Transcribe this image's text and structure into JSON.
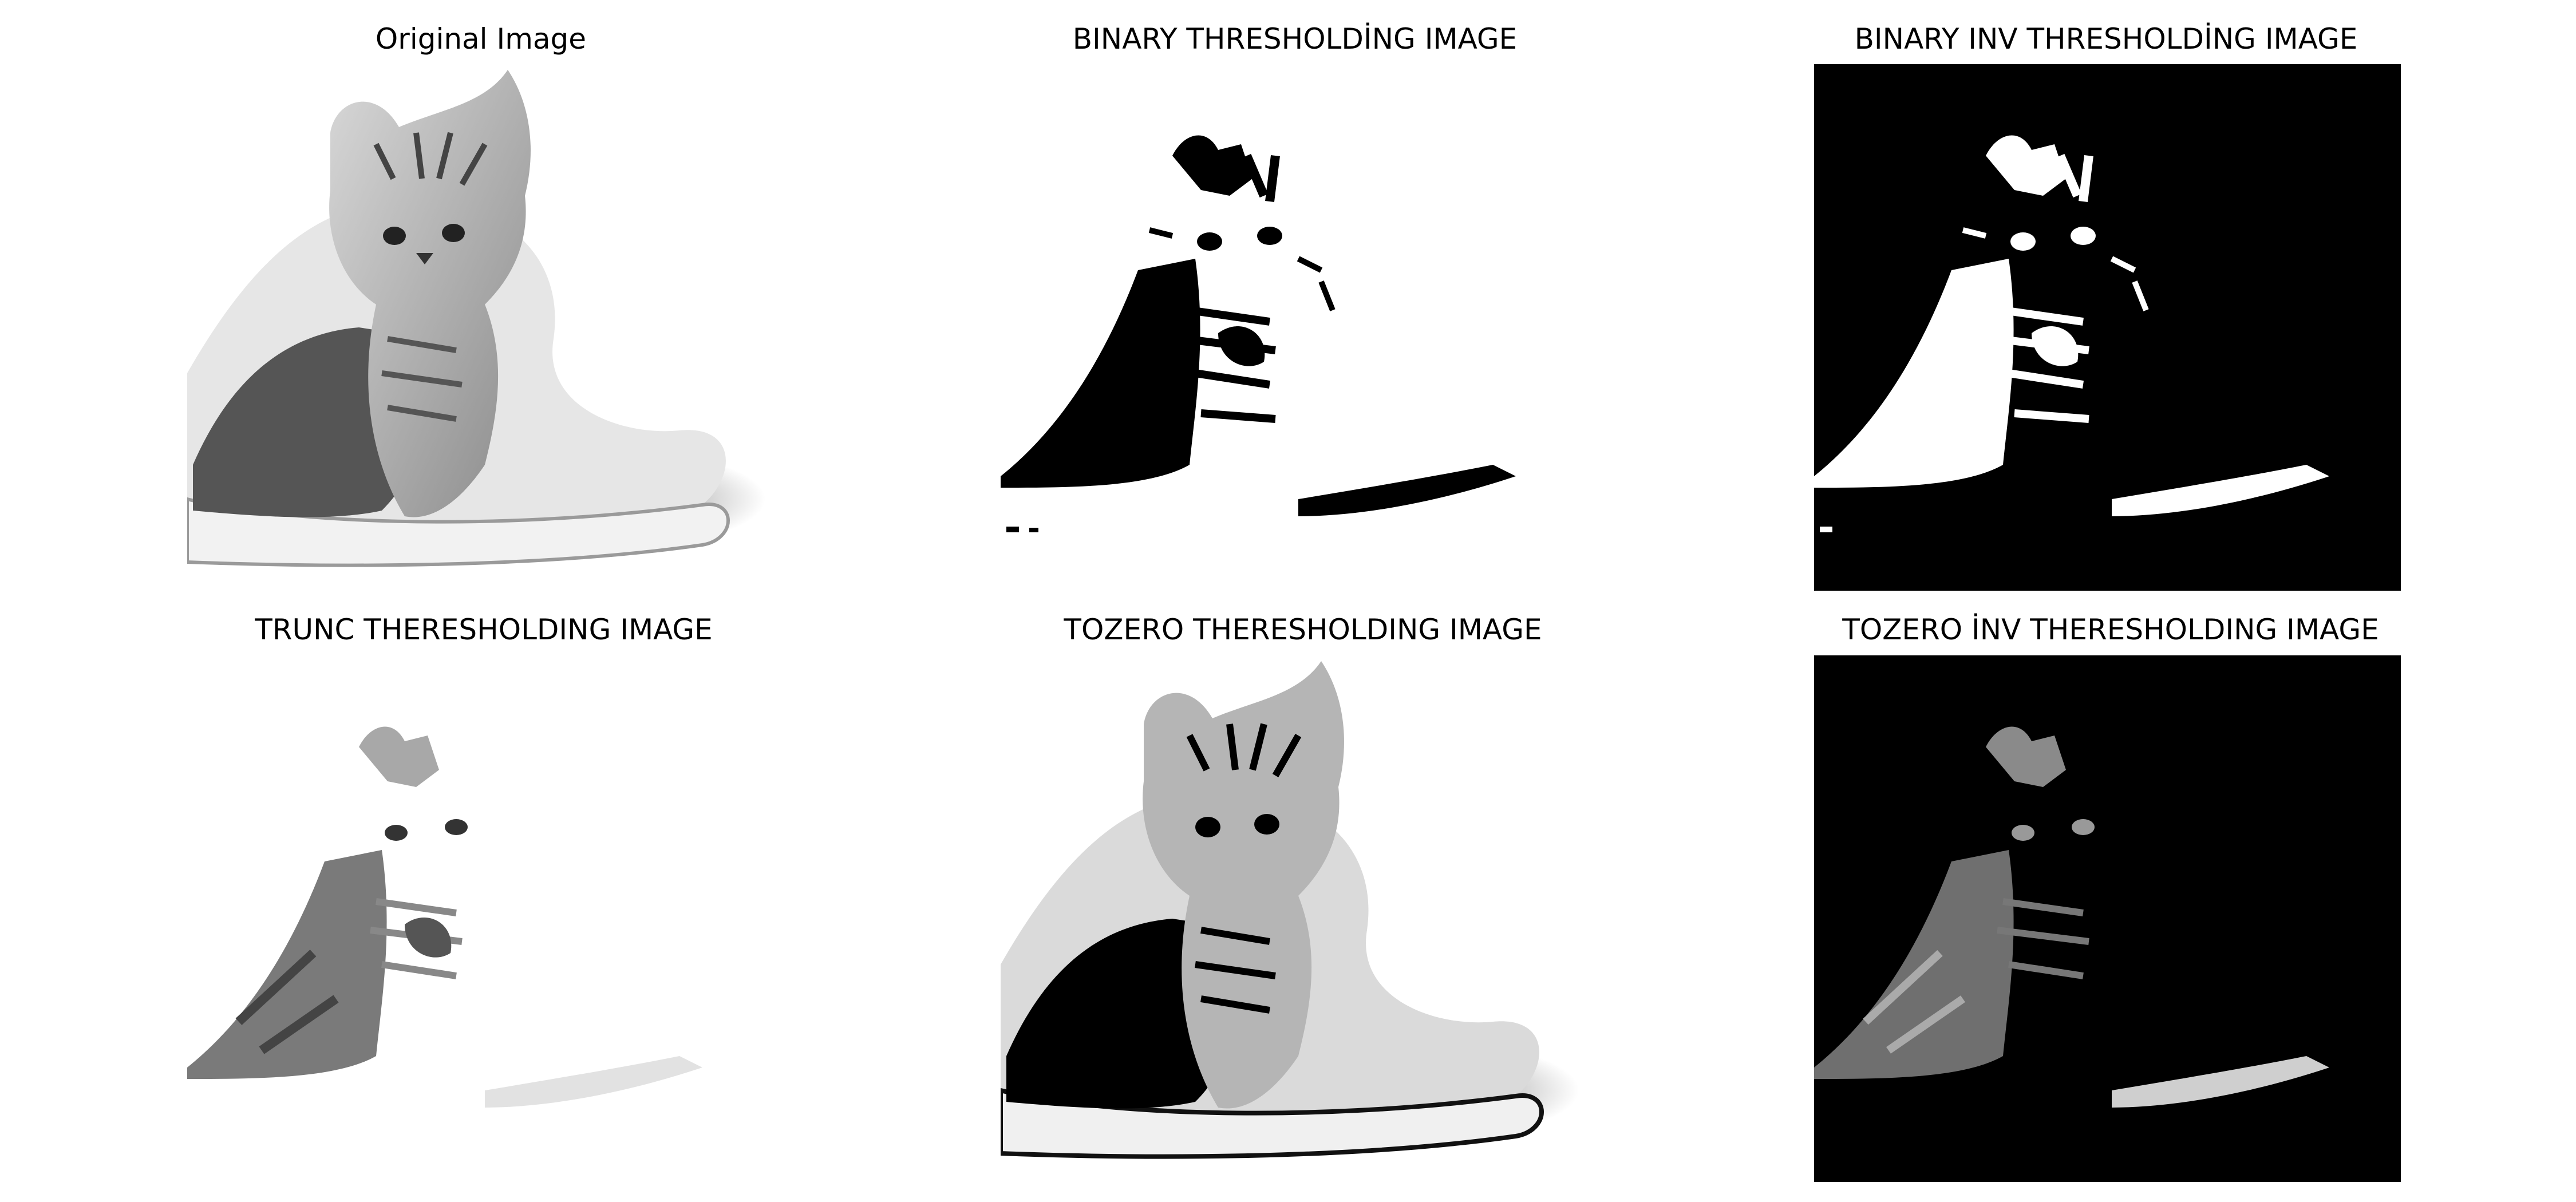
{
  "figure": {
    "panels": [
      {
        "title": "Original Image",
        "image": "kitten-original-grayscale"
      },
      {
        "title": "BINARY THRESHOLDİNG IMAGE",
        "image": "kitten-binary-threshold"
      },
      {
        "title": "BINARY INV THRESHOLDİNG IMAGE",
        "image": "kitten-binary-inverse-threshold"
      },
      {
        "title": "TRUNC THERESHOLDING IMAGE",
        "image": "kitten-truncated-threshold"
      },
      {
        "title": "TOZERO THERESHOLDING IMAGE",
        "image": "kitten-tozero-threshold"
      },
      {
        "title": "TOZERO İNV THERESHOLDING IMAGE",
        "image": "kitten-tozero-inverse-threshold"
      }
    ]
  },
  "colors": {
    "background": "#ffffff",
    "text": "#000000",
    "black": "#000000",
    "white": "#ffffff"
  }
}
